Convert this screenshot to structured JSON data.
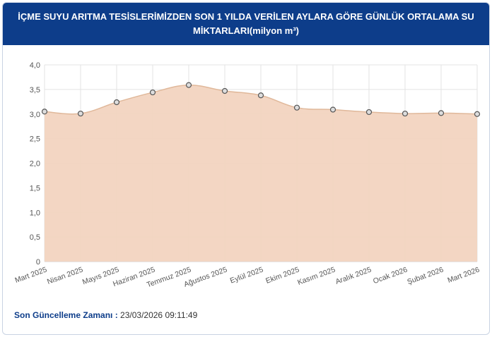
{
  "header": {
    "title_line1": "İÇME SUYU ARITMA TESİSLERİMİZDEN SON 1 YILDA VERİLEN AYLARA GÖRE GÜNLÜK ORTALAMA SU",
    "title_line2": "MİKTARLARI(milyon m³)"
  },
  "chart_data": {
    "type": "area",
    "title": "İÇME SUYU ARITMA TESİSLERİMİZDEN SON 1 YILDA VERİLEN AYLARA GÖRE GÜNLÜK ORTALAMA SU MİKTARLARI(milyon m³)",
    "categories": [
      "Mart 2025",
      "Nisan 2025",
      "Mayıs 2025",
      "Haziran 2025",
      "Temmuz 2025",
      "Ağustos 2025",
      "Eylül 2025",
      "Ekim 2025",
      "Kasım 2025",
      "Aralık 2025",
      "Ocak 2026",
      "Şubat 2026",
      "Mart 2026"
    ],
    "values": [
      3.05,
      3.01,
      3.24,
      3.44,
      3.59,
      3.47,
      3.38,
      3.13,
      3.09,
      3.04,
      3.01,
      3.02,
      3.0
    ],
    "ylim": [
      0,
      4
    ],
    "yticks": [
      "0",
      "0,5",
      "1,0",
      "1,5",
      "2,0",
      "2,5",
      "3,0",
      "3,5",
      "4,0"
    ],
    "grid": true,
    "colors": {
      "fill": "#f2d4c0",
      "line": "#e0b89a",
      "marker_stroke": "#555555",
      "marker_fill": "#dddddd",
      "grid": "#e3e3e3"
    }
  },
  "footer": {
    "label": "Son Güncelleme Zamanı :",
    "value": "23/03/2026 09:11:49"
  }
}
